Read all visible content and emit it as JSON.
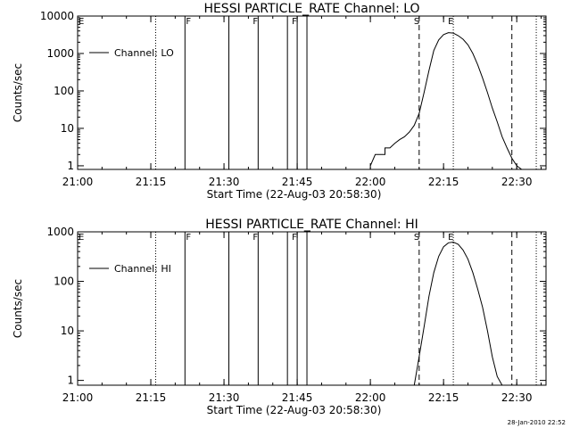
{
  "footer": {
    "stamp": "28-Jan-2010 22:52"
  },
  "chart_data": [
    {
      "type": "line",
      "title": "HESSI PARTICLE_RATE Channel: LO",
      "xlabel": "Start Time (22-Aug-03 20:58:30)",
      "ylabel": "Counts/sec",
      "xlim": [
        "21:00",
        "22:36"
      ],
      "ylim": [
        0.8,
        10000
      ],
      "yscale": "log",
      "xticks": [
        "21:00",
        "21:15",
        "21:30",
        "21:45",
        "22:00",
        "22:15",
        "22:30"
      ],
      "yticks": [
        "1",
        "10",
        "100",
        "1000",
        "10000"
      ],
      "legend": {
        "entries": [
          "Channel: LO"
        ],
        "placement": "top-left"
      },
      "series": [
        {
          "name": "Channel: LO",
          "x": [
            "22:00",
            "22:01",
            "22:02",
            "22:03",
            "22:03",
            "22:04",
            "22:05",
            "22:06",
            "22:07",
            "22:08",
            "22:09",
            "22:10",
            "22:11",
            "22:12",
            "22:13",
            "22:14",
            "22:15",
            "22:16",
            "22:17",
            "22:18",
            "22:19",
            "22:20",
            "22:21",
            "22:22",
            "22:23",
            "22:24",
            "22:25",
            "22:26",
            "22:27",
            "22:28",
            "22:29",
            "22:30",
            "22:31"
          ],
          "values": [
            1,
            2,
            2,
            2,
            3,
            3,
            4,
            5,
            6,
            8,
            12,
            25,
            90,
            350,
            1200,
            2300,
            3200,
            3600,
            3500,
            3000,
            2400,
            1700,
            1000,
            500,
            220,
            90,
            35,
            15,
            6,
            3,
            1.6,
            1,
            0.8
          ]
        }
      ],
      "markers": [
        {
          "time": "21:16",
          "style": "dotted",
          "label": ""
        },
        {
          "time": "21:22",
          "style": "solid",
          "label": ""
        },
        {
          "time": "21:31",
          "style": "solid",
          "label": ""
        },
        {
          "time": "21:37",
          "style": "solid",
          "label": "F"
        },
        {
          "time": "21:43",
          "style": "solid",
          "label": ""
        },
        {
          "time": "21:45",
          "style": "solid",
          "label": "F"
        },
        {
          "time": "21:47",
          "style": "solid",
          "label": ""
        },
        {
          "time": "22:10",
          "style": "dashed",
          "label": "S"
        },
        {
          "time": "22:17",
          "style": "dotted",
          "label": "E"
        },
        {
          "time": "22:29",
          "style": "dashed",
          "label": ""
        },
        {
          "time": "22:34",
          "style": "dotted",
          "label": ""
        }
      ],
      "edge_labels": [
        {
          "time": "21:00",
          "label": "E"
        },
        {
          "time": "21:22",
          "label": "F"
        }
      ]
    },
    {
      "type": "line",
      "title": "HESSI PARTICLE_RATE Channel: HI",
      "xlabel": "Start Time (22-Aug-03 20:58:30)",
      "ylabel": "Counts/sec",
      "xlim": [
        "21:00",
        "22:36"
      ],
      "ylim": [
        0.8,
        1000
      ],
      "yscale": "log",
      "xticks": [
        "21:00",
        "21:15",
        "21:30",
        "21:45",
        "22:00",
        "22:15",
        "22:30"
      ],
      "yticks": [
        "1",
        "10",
        "100",
        "1000"
      ],
      "legend": {
        "entries": [
          "Channel: HI"
        ],
        "placement": "top-left"
      },
      "series": [
        {
          "name": "Channel: HI",
          "x": [
            "22:09",
            "22:10",
            "22:11",
            "22:12",
            "22:13",
            "22:14",
            "22:15",
            "22:16",
            "22:17",
            "22:18",
            "22:19",
            "22:20",
            "22:21",
            "22:22",
            "22:23",
            "22:24",
            "22:25",
            "22:26",
            "22:27"
          ],
          "values": [
            0.8,
            3,
            12,
            50,
            150,
            320,
            500,
            600,
            620,
            560,
            430,
            280,
            150,
            70,
            30,
            10,
            3,
            1.2,
            0.8
          ]
        }
      ],
      "markers": [
        {
          "time": "21:16",
          "style": "dotted",
          "label": ""
        },
        {
          "time": "21:22",
          "style": "solid",
          "label": ""
        },
        {
          "time": "21:31",
          "style": "solid",
          "label": ""
        },
        {
          "time": "21:37",
          "style": "solid",
          "label": "F"
        },
        {
          "time": "21:43",
          "style": "solid",
          "label": ""
        },
        {
          "time": "21:45",
          "style": "solid",
          "label": "F"
        },
        {
          "time": "21:47",
          "style": "solid",
          "label": ""
        },
        {
          "time": "22:10",
          "style": "dashed",
          "label": "S"
        },
        {
          "time": "22:17",
          "style": "dotted",
          "label": "E"
        },
        {
          "time": "22:29",
          "style": "dashed",
          "label": ""
        },
        {
          "time": "22:34",
          "style": "dotted",
          "label": ""
        }
      ],
      "edge_labels": [
        {
          "time": "21:00",
          "label": "E"
        },
        {
          "time": "21:22",
          "label": "F"
        }
      ]
    }
  ]
}
